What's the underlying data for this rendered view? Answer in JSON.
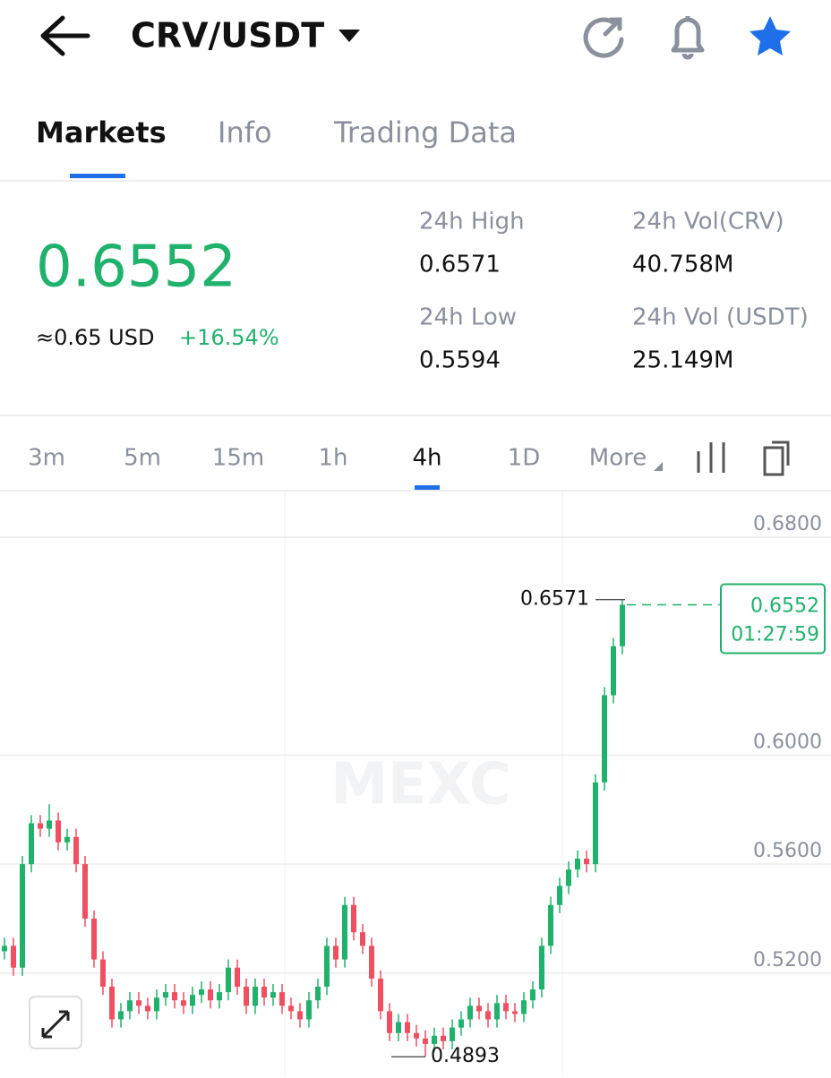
{
  "header": {
    "pair": "CRV/USDT"
  },
  "tabs": [
    "Markets",
    "Info",
    "Trading Data"
  ],
  "ticker": {
    "price": "0.6552",
    "usd": "≈0.65 USD",
    "change": "+16.54%",
    "stats": [
      {
        "label": "24h High",
        "value": "0.6571"
      },
      {
        "label": "24h Vol(CRV)",
        "value": "40.758M"
      },
      {
        "label": "24h Low",
        "value": "0.5594"
      },
      {
        "label": "24h Vol (USDT)",
        "value": "25.149M"
      }
    ]
  },
  "intervals": [
    "3m",
    "5m",
    "15m",
    "1h",
    "4h",
    "1D",
    "More"
  ],
  "chart_data": {
    "type": "candlestick",
    "watermark": "MEXC",
    "open": [
      0.528,
      0.53,
      0.522,
      0.56,
      0.575,
      0.573,
      0.576,
      0.568,
      0.57,
      0.56,
      0.54,
      0.525,
      0.515,
      0.503,
      0.506,
      0.51,
      0.508,
      0.506,
      0.511,
      0.513,
      0.51,
      0.508,
      0.512,
      0.514,
      0.51,
      0.513,
      0.522,
      0.515,
      0.508,
      0.515,
      0.511,
      0.513,
      0.508,
      0.506,
      0.503,
      0.51,
      0.515,
      0.53,
      0.525,
      0.545,
      0.535,
      0.53,
      0.518,
      0.506,
      0.498,
      0.502,
      0.498,
      0.496,
      0.494,
      0.497,
      0.495,
      0.5,
      0.503,
      0.508,
      0.506,
      0.503,
      0.509,
      0.506,
      0.505,
      0.51,
      0.514,
      0.53,
      0.545,
      0.552,
      0.558,
      0.562,
      0.56,
      0.59,
      0.622,
      0.64
    ],
    "high": [
      0.533,
      0.533,
      0.563,
      0.578,
      0.578,
      0.582,
      0.579,
      0.573,
      0.573,
      0.563,
      0.543,
      0.528,
      0.518,
      0.509,
      0.513,
      0.513,
      0.511,
      0.514,
      0.516,
      0.516,
      0.513,
      0.515,
      0.517,
      0.517,
      0.516,
      0.525,
      0.525,
      0.518,
      0.518,
      0.518,
      0.516,
      0.516,
      0.511,
      0.509,
      0.513,
      0.518,
      0.533,
      0.533,
      0.548,
      0.548,
      0.538,
      0.533,
      0.521,
      0.509,
      0.505,
      0.505,
      0.501,
      0.499,
      0.5,
      0.5,
      0.503,
      0.506,
      0.511,
      0.511,
      0.509,
      0.512,
      0.512,
      0.509,
      0.513,
      0.517,
      0.533,
      0.548,
      0.555,
      0.561,
      0.565,
      0.565,
      0.593,
      0.625,
      0.643,
      0.6571
    ],
    "low": [
      0.525,
      0.519,
      0.519,
      0.557,
      0.57,
      0.57,
      0.565,
      0.565,
      0.557,
      0.537,
      0.522,
      0.512,
      0.5,
      0.5,
      0.503,
      0.505,
      0.503,
      0.503,
      0.508,
      0.507,
      0.505,
      0.505,
      0.509,
      0.507,
      0.507,
      0.51,
      0.512,
      0.505,
      0.505,
      0.508,
      0.508,
      0.505,
      0.503,
      0.5,
      0.5,
      0.507,
      0.512,
      0.522,
      0.522,
      0.532,
      0.527,
      0.515,
      0.503,
      0.495,
      0.495,
      0.495,
      0.493,
      0.4893,
      0.491,
      0.492,
      0.492,
      0.497,
      0.5,
      0.503,
      0.5,
      0.5,
      0.503,
      0.502,
      0.502,
      0.507,
      0.511,
      0.527,
      0.542,
      0.549,
      0.555,
      0.557,
      0.557,
      0.587,
      0.619,
      0.637
    ],
    "close": [
      0.53,
      0.522,
      0.56,
      0.575,
      0.573,
      0.576,
      0.568,
      0.57,
      0.56,
      0.54,
      0.525,
      0.515,
      0.503,
      0.506,
      0.51,
      0.508,
      0.506,
      0.511,
      0.513,
      0.51,
      0.508,
      0.512,
      0.514,
      0.51,
      0.513,
      0.522,
      0.515,
      0.508,
      0.515,
      0.511,
      0.513,
      0.508,
      0.506,
      0.503,
      0.51,
      0.515,
      0.53,
      0.525,
      0.545,
      0.535,
      0.53,
      0.518,
      0.506,
      0.498,
      0.502,
      0.498,
      0.496,
      0.494,
      0.497,
      0.495,
      0.5,
      0.503,
      0.508,
      0.506,
      0.503,
      0.509,
      0.506,
      0.505,
      0.51,
      0.514,
      0.53,
      0.545,
      0.552,
      0.558,
      0.562,
      0.56,
      0.59,
      0.622,
      0.64,
      0.6552
    ],
    "up_color": "#20b26c",
    "down_color": "#ef4f60",
    "ylim": [
      0.4828,
      0.6971
    ],
    "yticks": [
      {
        "value": 0.68,
        "label": "0.6800"
      },
      {
        "value": 0.6,
        "label": "0.6000"
      },
      {
        "value": 0.56,
        "label": "0.5600"
      },
      {
        "value": 0.52,
        "label": "0.5200"
      }
    ],
    "grid": true,
    "max_marker": 0.6571,
    "min_marker": 0.4893,
    "last_price": 0.6552,
    "countdown": "01:27:59"
  }
}
